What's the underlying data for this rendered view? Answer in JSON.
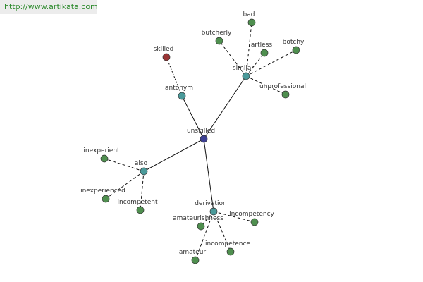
{
  "url": "http://www.artikata.com",
  "nodes": [
    {
      "label": "unskilled"
    },
    {
      "label": "antonym"
    },
    {
      "label": "skilled"
    },
    {
      "label": "similar"
    },
    {
      "label": "bad"
    },
    {
      "label": "butcherly"
    },
    {
      "label": "artless"
    },
    {
      "label": "botchy"
    },
    {
      "label": "unprofessional"
    },
    {
      "label": "also"
    },
    {
      "label": "inexperient"
    },
    {
      "label": "inexperienced"
    },
    {
      "label": "incompetent"
    },
    {
      "label": "derivation"
    },
    {
      "label": "amateurishness"
    },
    {
      "label": "incompetency"
    },
    {
      "label": "incompetence"
    },
    {
      "label": "amateur"
    }
  ]
}
